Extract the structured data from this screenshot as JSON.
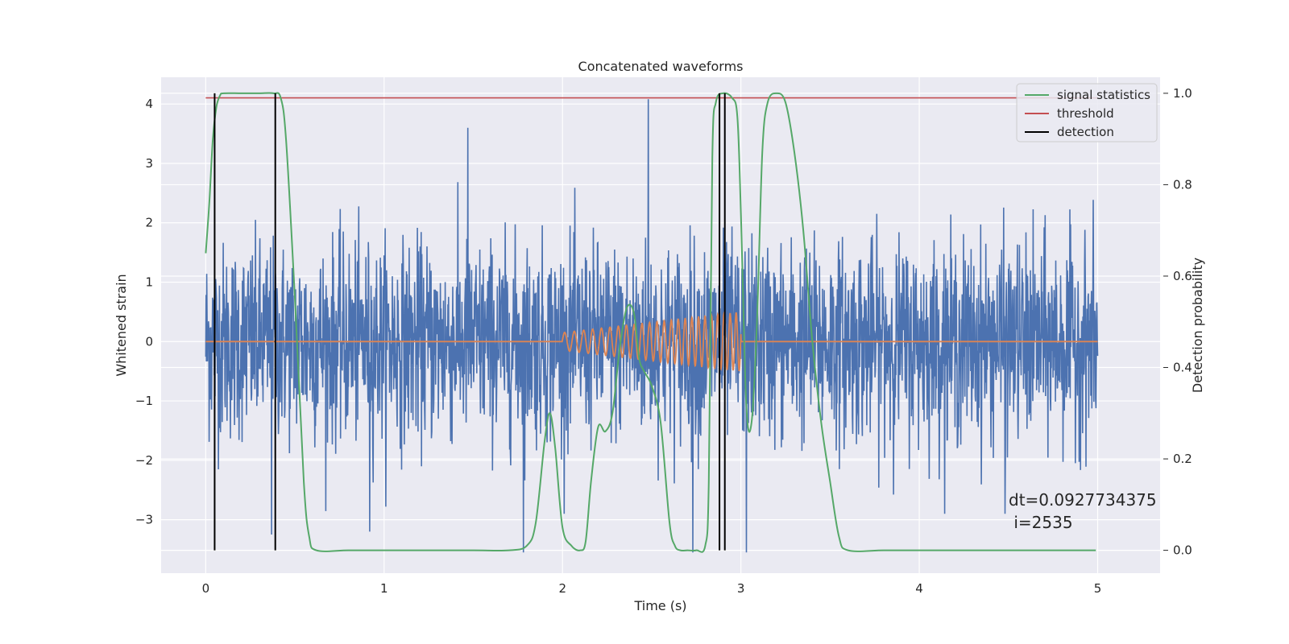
{
  "chart_data": {
    "type": "line",
    "title": "Concatenated waveforms",
    "xlabel": "Time (s)",
    "ylabel": "Whitened strain",
    "y2label": "Detection probability",
    "xlim": [
      -0.25,
      5.35
    ],
    "ylim": [
      -3.9,
      4.45
    ],
    "y2lim": [
      -0.05,
      1.035
    ],
    "x_ticks": [
      0,
      1,
      2,
      3,
      4,
      5
    ],
    "x_tick_labels": [
      "0",
      "1",
      "2",
      "3",
      "4",
      "5"
    ],
    "y_ticks": [
      -3,
      -2,
      -1,
      0,
      1,
      2,
      3,
      4
    ],
    "y_tick_labels": [
      "−3",
      "−2",
      "−1",
      "0",
      "1",
      "2",
      "3",
      "4"
    ],
    "y2_ticks": [
      0.0,
      0.2,
      0.4,
      0.6,
      0.8,
      1.0
    ],
    "y2_tick_labels": [
      "0.0",
      "0.2",
      "0.4",
      "0.6",
      "0.8",
      "1.0"
    ],
    "grid": true,
    "legend_position": "top-right",
    "legend": [
      {
        "label": "signal statistics",
        "color": "#55a868"
      },
      {
        "label": "threshold",
        "color": "#c44e52"
      },
      {
        "label": "detection",
        "color": "#000000"
      }
    ],
    "annotation": {
      "line1": "dt=0.0927734375",
      "line2": " i=2535"
    },
    "colors": {
      "background": "#eaeaf2",
      "grid": "#ffffff",
      "noise": "#4c72b0",
      "injection": "#dd8452",
      "statistic": "#55a868",
      "threshold": "#c44e52",
      "detection": "#000000"
    },
    "series": [
      {
        "name": "whitened strain (noise)",
        "axis": "left",
        "x_range": [
          0,
          5
        ],
        "sample_count": 2600,
        "typical_range": [
          -2.5,
          2.5
        ],
        "extremes": [
          {
            "x": 0.37,
            "y": -3.25
          },
          {
            "x": 0.92,
            "y": -3.2
          },
          {
            "x": 1.47,
            "y": 3.6
          },
          {
            "x": 1.78,
            "y": -3.55
          },
          {
            "x": 2.48,
            "y": 4.08
          },
          {
            "x": 2.73,
            "y": -3.55
          },
          {
            "x": 3.03,
            "y": -3.55
          },
          {
            "x": 4.48,
            "y": -2.9
          }
        ]
      },
      {
        "name": "injected waveform",
        "axis": "left",
        "x_range": [
          0,
          5
        ],
        "chirp_start": 2.0,
        "chirp_end": 3.0,
        "amplitude_start": 0.15,
        "amplitude_end": 0.5,
        "freq_start": 18,
        "freq_end": 30
      },
      {
        "name": "signal statistics",
        "axis": "right",
        "x": [
          0.0,
          0.02,
          0.04,
          0.06,
          0.08,
          0.1,
          0.2,
          0.3,
          0.38,
          0.42,
          0.45,
          0.5,
          0.55,
          0.58,
          0.62,
          0.8,
          1.0,
          1.2,
          1.5,
          1.7,
          1.8,
          1.85,
          1.9,
          1.93,
          1.96,
          2.0,
          2.05,
          2.1,
          2.13,
          2.16,
          2.2,
          2.24,
          2.28,
          2.32,
          2.36,
          2.4,
          2.43,
          2.46,
          2.5,
          2.55,
          2.6,
          2.63,
          2.66,
          2.7,
          2.75,
          2.8,
          2.82,
          2.84,
          2.86,
          2.9,
          2.95,
          2.98,
          3.0,
          3.03,
          3.06,
          3.09,
          3.12,
          3.15,
          3.2,
          3.25,
          3.3,
          3.35,
          3.4,
          3.45,
          3.5,
          3.55,
          3.6,
          3.8,
          4.0,
          4.5,
          4.99
        ],
        "values": [
          0.65,
          0.76,
          0.9,
          0.97,
          0.995,
          1.0,
          1.0,
          1.0,
          1.0,
          0.99,
          0.9,
          0.55,
          0.15,
          0.03,
          0.0,
          0.0,
          0.0,
          0.0,
          0.0,
          0.0,
          0.01,
          0.06,
          0.24,
          0.3,
          0.22,
          0.05,
          0.01,
          0.0,
          0.02,
          0.15,
          0.27,
          0.26,
          0.3,
          0.44,
          0.53,
          0.52,
          0.42,
          0.39,
          0.36,
          0.28,
          0.06,
          0.01,
          0.0,
          0.0,
          0.0,
          0.01,
          0.15,
          0.86,
          0.98,
          1.0,
          0.99,
          0.95,
          0.74,
          0.32,
          0.28,
          0.5,
          0.87,
          0.98,
          1.0,
          0.98,
          0.87,
          0.7,
          0.46,
          0.28,
          0.15,
          0.03,
          0.0,
          0.0,
          0.0,
          0.0,
          0.0
        ]
      },
      {
        "name": "threshold",
        "axis": "right",
        "x": [
          0,
          5
        ],
        "values": [
          0.99,
          0.99
        ]
      },
      {
        "name": "detection",
        "axis": "right",
        "x": [
          0.05,
          0.39,
          2.88,
          2.91
        ],
        "y_range": [
          0.0,
          1.0
        ]
      }
    ]
  }
}
